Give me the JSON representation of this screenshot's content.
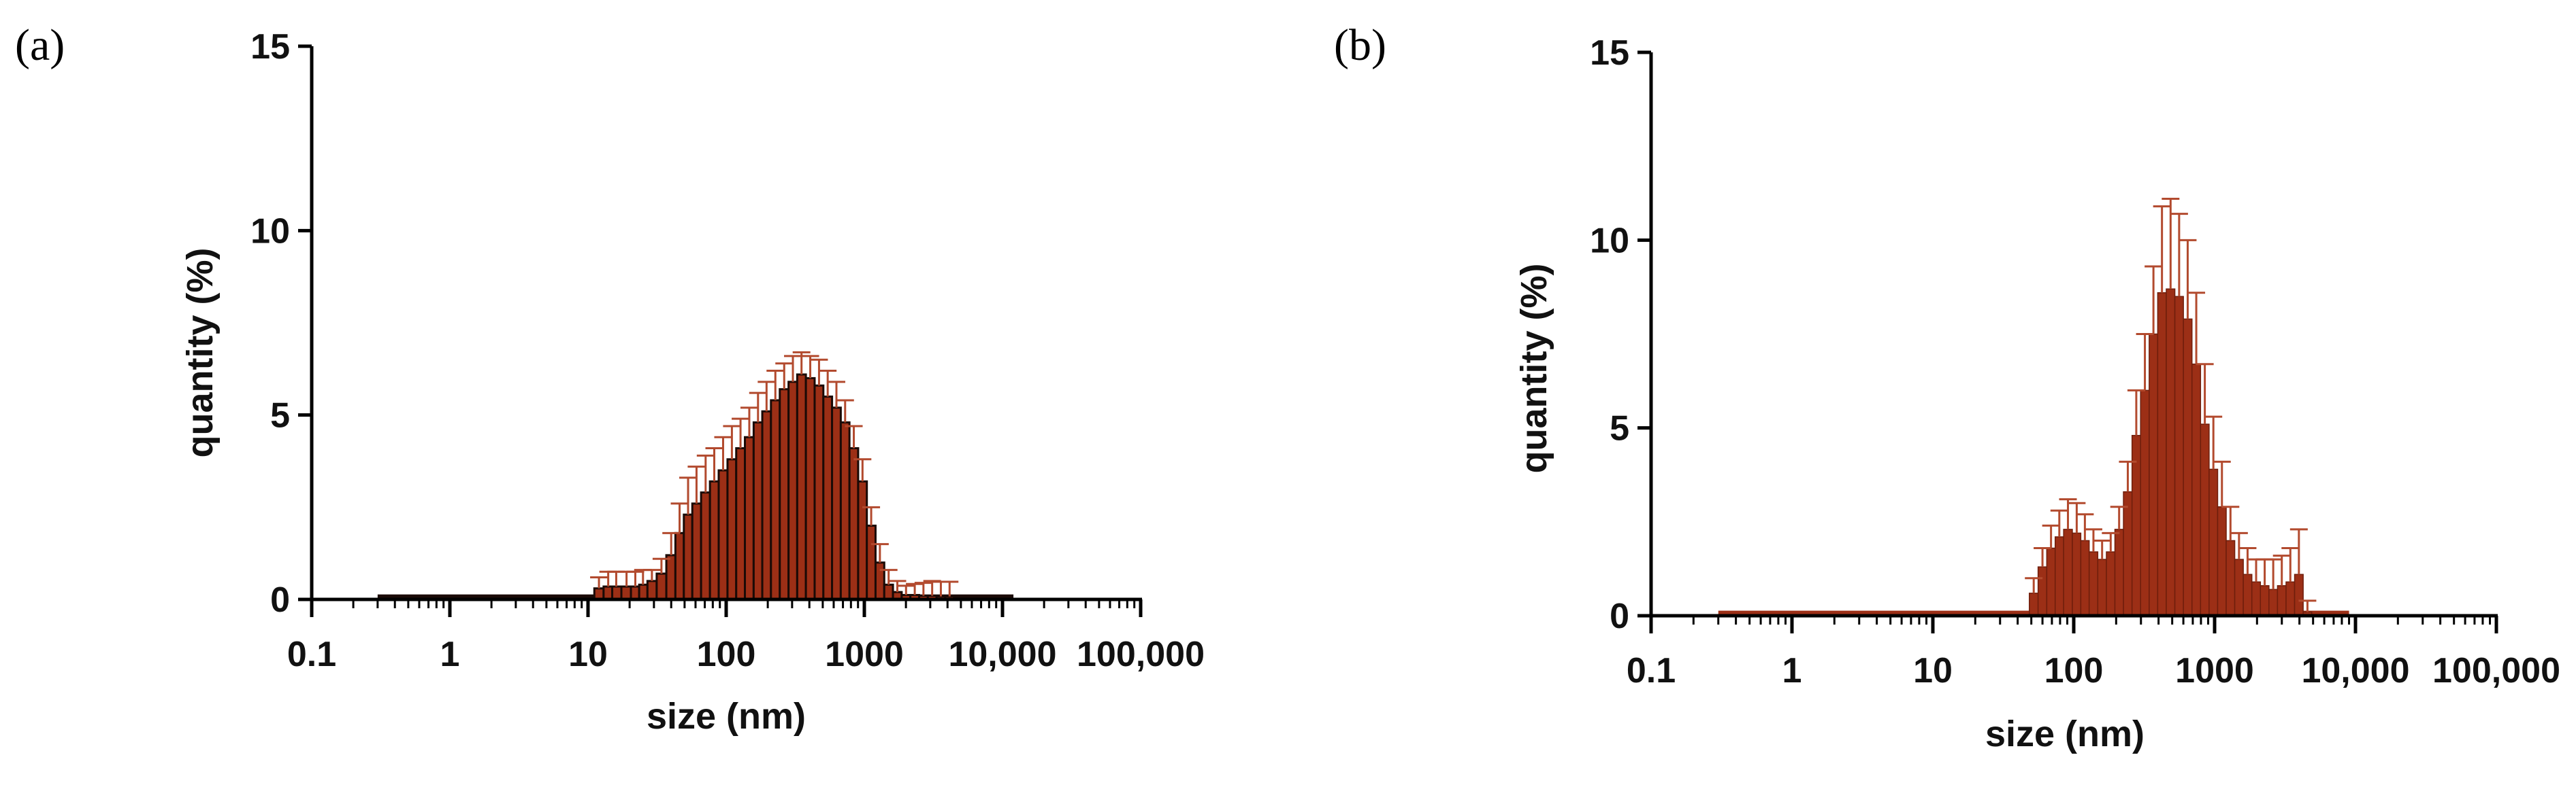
{
  "colors": {
    "bar_fill": "#9c2f16",
    "bar_edge": "#1a0a06",
    "error_bar": "#b24a2e",
    "axis": "#000000"
  },
  "chart_data": [
    {
      "panel_label": "(a)",
      "type": "bar",
      "log_x": true,
      "xlabel": "size (nm)",
      "ylabel": "quantity (%)",
      "xlim": [
        0.1,
        100000
      ],
      "ylim": [
        0,
        15
      ],
      "x_ticks": [
        {
          "value": 0.1,
          "label": "0.1"
        },
        {
          "value": 1,
          "label": "1"
        },
        {
          "value": 10,
          "label": "10"
        },
        {
          "value": 100,
          "label": "100"
        },
        {
          "value": 1000,
          "label": "1000"
        },
        {
          "value": 10000,
          "label": "10,000"
        },
        {
          "value": 100000,
          "label": "100,000"
        }
      ],
      "y_ticks": [
        {
          "value": 0,
          "label": "0"
        },
        {
          "value": 5,
          "label": "5"
        },
        {
          "value": 10,
          "label": "10"
        },
        {
          "value": 15,
          "label": "15"
        }
      ],
      "baseline": {
        "x_start": 0.3,
        "x_end": 12000,
        "value": 0.08
      },
      "bar_dark_edges": true,
      "x": [
        12,
        14,
        16,
        19,
        22,
        25,
        29,
        34,
        40,
        46,
        53,
        61,
        71,
        82,
        95,
        110,
        127,
        147,
        170,
        196,
        227,
        263,
        304,
        351,
        406,
        470,
        543,
        628,
        726,
        839,
        970,
        1121,
        1296,
        1499,
        1733,
        2004,
        2317,
        2678,
        3097,
        3580,
        4140
      ],
      "values": [
        0.3,
        0.35,
        0.35,
        0.35,
        0.35,
        0.4,
        0.5,
        0.7,
        1.2,
        1.8,
        2.3,
        2.6,
        2.9,
        3.2,
        3.5,
        3.8,
        4.1,
        4.4,
        4.8,
        5.1,
        5.4,
        5.7,
        5.9,
        6.1,
        6.0,
        5.8,
        5.5,
        5.2,
        4.8,
        4.1,
        3.2,
        2.0,
        1.0,
        0.4,
        0.2,
        0.12,
        0.12,
        0.1,
        0.1,
        0.08,
        0.08
      ],
      "errors": [
        0.3,
        0.4,
        0.4,
        0.4,
        0.4,
        0.4,
        0.3,
        0.4,
        0.6,
        0.8,
        1.0,
        1.0,
        1.0,
        0.9,
        0.9,
        0.9,
        0.8,
        0.8,
        0.8,
        0.8,
        0.8,
        0.7,
        0.7,
        0.6,
        0.6,
        0.7,
        0.7,
        0.7,
        0.6,
        0.6,
        0.6,
        0.5,
        0.5,
        0.4,
        0.3,
        0.25,
        0.3,
        0.35,
        0.4,
        0.4,
        0.4
      ]
    },
    {
      "panel_label": "(b)",
      "type": "bar",
      "log_x": true,
      "xlabel": "size (nm)",
      "ylabel": "quantity (%)",
      "xlim": [
        0.1,
        100000
      ],
      "ylim": [
        0,
        15
      ],
      "x_ticks": [
        {
          "value": 0.1,
          "label": "0.1"
        },
        {
          "value": 1,
          "label": "1"
        },
        {
          "value": 10,
          "label": "10"
        },
        {
          "value": 100,
          "label": "100"
        },
        {
          "value": 1000,
          "label": "1000"
        },
        {
          "value": 10000,
          "label": "10,000"
        },
        {
          "value": 100000,
          "label": "100,000"
        }
      ],
      "y_ticks": [
        {
          "value": 0,
          "label": "0"
        },
        {
          "value": 5,
          "label": "5"
        },
        {
          "value": 10,
          "label": "10"
        },
        {
          "value": 15,
          "label": "15"
        }
      ],
      "baseline": {
        "x_start": 0.3,
        "x_end": 9000,
        "value": 0.08
      },
      "bar_dark_edges": false,
      "x": [
        52,
        60,
        69,
        79,
        91,
        105,
        120,
        138,
        159,
        183,
        210,
        242,
        278,
        320,
        368,
        423,
        487,
        560,
        644,
        741,
        852,
        980,
        1127,
        1296,
        1490,
        1714,
        1971,
        2267,
        2607,
        2998,
        3448,
        3965,
        4560
      ],
      "values": [
        0.6,
        1.3,
        1.8,
        2.1,
        2.3,
        2.2,
        2.0,
        1.7,
        1.5,
        1.7,
        2.3,
        3.3,
        4.8,
        6.0,
        7.5,
        8.6,
        8.7,
        8.5,
        7.9,
        6.7,
        5.1,
        3.9,
        2.9,
        2.0,
        1.5,
        1.1,
        0.9,
        0.8,
        0.7,
        0.8,
        0.9,
        1.1,
        0.1
      ],
      "errors": [
        0.4,
        0.5,
        0.6,
        0.7,
        0.8,
        0.8,
        0.7,
        0.6,
        0.5,
        0.5,
        0.6,
        0.8,
        1.2,
        1.5,
        1.8,
        2.3,
        2.4,
        2.2,
        2.1,
        1.9,
        1.6,
        1.4,
        1.2,
        0.9,
        0.7,
        0.7,
        0.6,
        0.7,
        0.8,
        0.8,
        0.9,
        1.2,
        0.3
      ]
    }
  ]
}
